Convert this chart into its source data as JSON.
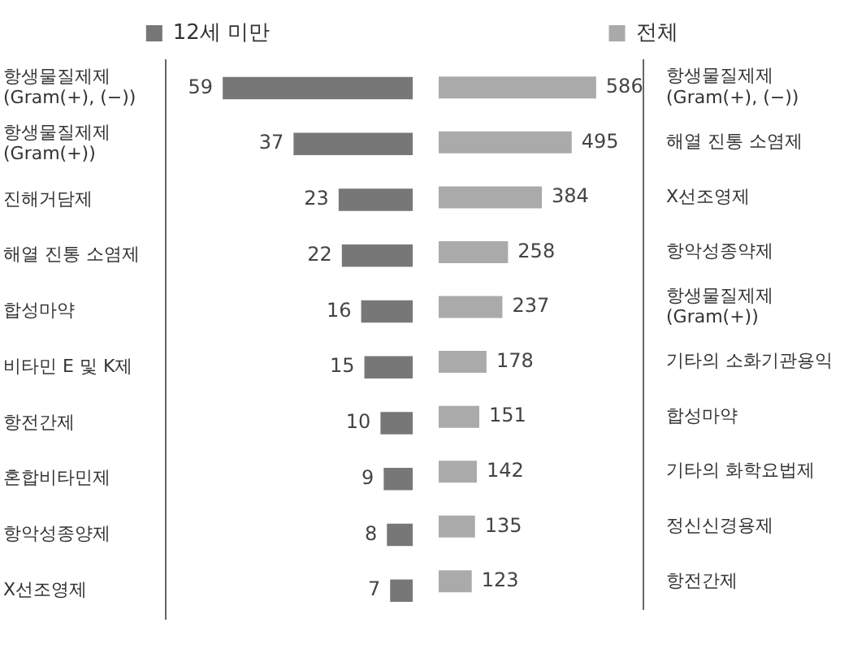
{
  "chart_data": [
    {
      "type": "bar",
      "orientation": "horizontal",
      "categories": [
        "항생물질제제 (Gram(+), (−))",
        "항생물질제제 (Gram(+))",
        "진해거담제",
        "해열 진통 소염제",
        "합성마약",
        "비타민 E 및 K제",
        "항전간제",
        "혼합비타민제",
        "항악성종양제",
        "X선조영제"
      ],
      "series": [
        {
          "name": "12세 미만",
          "color": "#777777",
          "values": [
            59,
            37,
            23,
            22,
            16,
            15,
            10,
            9,
            8,
            7
          ]
        }
      ],
      "data_labels": true,
      "grid": false,
      "legend": "top",
      "tick_labels": "y"
    },
    {
      "type": "bar",
      "orientation": "horizontal",
      "categories": [
        "항생물질제제 (Gram(+), (−))",
        "해열 진통 소염제",
        "X선조영제",
        "항악성종약제",
        "항생물질제제 (Gram(+))",
        "기타의 소화기관용익",
        "합성마약",
        "기타의 화학요법제",
        "정신신경용제",
        "항전간제"
      ],
      "series": [
        {
          "name": "전체",
          "color": "#aaaaaa",
          "values": [
            586,
            495,
            384,
            258,
            237,
            178,
            151,
            142,
            135,
            123
          ]
        }
      ],
      "data_labels": true,
      "grid": false,
      "legend": "top",
      "tick_labels": "y"
    }
  ]
}
